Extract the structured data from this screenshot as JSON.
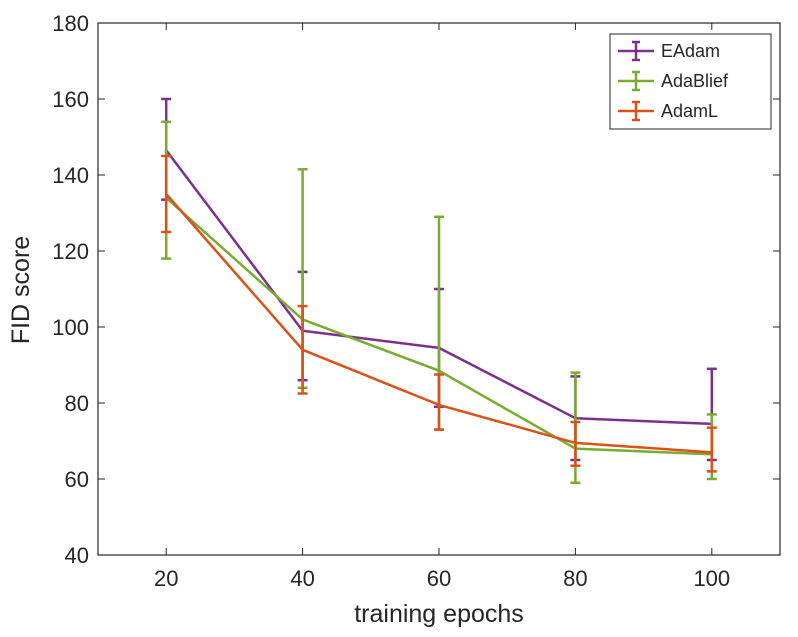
{
  "chart_data": {
    "type": "line",
    "xlabel": "training epochs",
    "ylabel": "FID score",
    "x": [
      20,
      40,
      60,
      80,
      100
    ],
    "xlim": [
      10,
      110
    ],
    "ylim": [
      40,
      180
    ],
    "xticks": [
      "20",
      "40",
      "60",
      "80",
      "100"
    ],
    "yticks": [
      "40",
      "60",
      "80",
      "100",
      "120",
      "140",
      "160",
      "180"
    ],
    "grid": false,
    "legend_position": "top-right",
    "error_bars": true,
    "series": [
      {
        "name": "EAdam",
        "color": "#7e2f8e",
        "values": [
          146.5,
          99.0,
          94.5,
          76.0,
          74.5
        ],
        "err_low": [
          133.5,
          86.0,
          79.0,
          65.0,
          65.0
        ],
        "err_high": [
          160.0,
          114.5,
          110.0,
          87.0,
          89.0
        ]
      },
      {
        "name": "AdaBlief",
        "color": "#77ac30",
        "values": [
          134.0,
          102.0,
          88.5,
          68.0,
          66.5
        ],
        "err_low": [
          118.0,
          84.0,
          73.0,
          59.0,
          60.0
        ],
        "err_high": [
          154.0,
          141.5,
          129.0,
          88.0,
          77.0
        ]
      },
      {
        "name": "AdamL",
        "color": "#d95319",
        "values": [
          135.0,
          94.0,
          79.5,
          69.5,
          67.0
        ],
        "err_low": [
          125.0,
          82.5,
          73.0,
          63.5,
          62.0
        ],
        "err_high": [
          145.0,
          105.5,
          87.5,
          75.0,
          73.5
        ]
      }
    ]
  }
}
